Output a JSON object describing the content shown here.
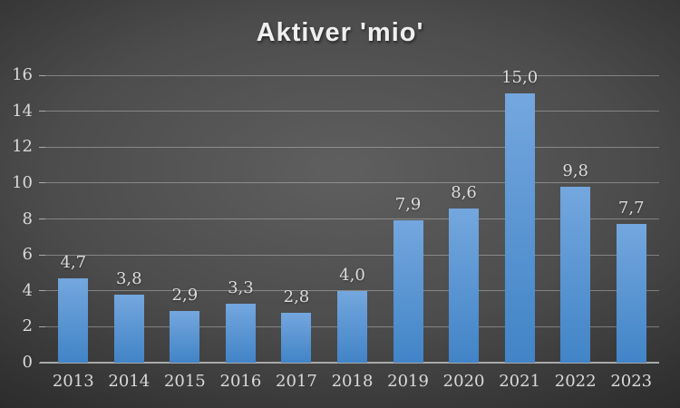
{
  "chart_data": {
    "type": "bar",
    "title": "Aktiver 'mio'",
    "categories": [
      "2013",
      "2014",
      "2015",
      "2016",
      "2017",
      "2018",
      "2019",
      "2020",
      "2021",
      "2022",
      "2023"
    ],
    "values": [
      4.7,
      3.8,
      2.9,
      3.3,
      2.8,
      4.0,
      7.9,
      8.6,
      15.0,
      9.8,
      7.7
    ],
    "value_labels": [
      "4,7",
      "3,8",
      "2,9",
      "3,3",
      "2,8",
      "4,0",
      "7,9",
      "8,6",
      "15,0",
      "9,8",
      "7,7"
    ],
    "xlabel": "",
    "ylabel": "",
    "ylim": [
      0,
      16
    ],
    "yticks": [
      0,
      2,
      4,
      6,
      8,
      10,
      12,
      14,
      16
    ],
    "grid": "horizontal",
    "legend": "none",
    "series_name": "Aktiver",
    "colors": {
      "bar_top": "#74a7de",
      "bar_bottom": "#4184c7",
      "label_text": "#dcdcdc",
      "axis_text": "#d9d9d9",
      "axis_line": "#a9a9a9",
      "gridline": "rgba(225,225,225,0.38)",
      "title_text": "#efefef"
    }
  }
}
